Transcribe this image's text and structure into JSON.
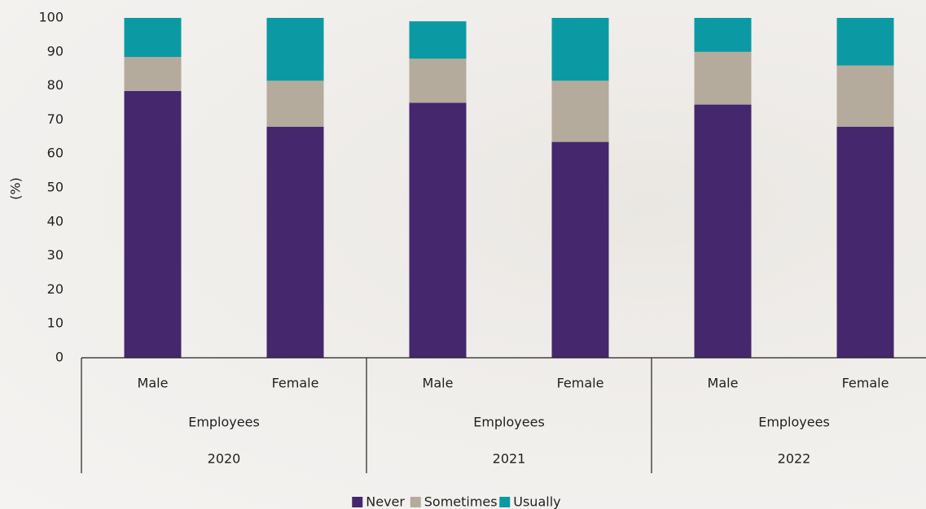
{
  "chart_data": {
    "type": "stacked_bar",
    "y_label": "(%)",
    "categories": [
      "Male",
      "Female",
      "Male",
      "Female",
      "Male",
      "Female"
    ],
    "groups": [
      {
        "name": "Employees",
        "year": "2020"
      },
      {
        "name": "Employees",
        "year": "2021"
      },
      {
        "name": "Employees",
        "year": "2022"
      }
    ],
    "series": [
      {
        "name": "Never",
        "color": "#45276d",
        "values": [
          78.5,
          68,
          75,
          63.5,
          74.5,
          68
        ]
      },
      {
        "name": "Sometimes",
        "color": "#b5ab9c",
        "values": [
          10,
          13.5,
          13,
          18,
          15.5,
          18
        ]
      },
      {
        "name": "Usually",
        "color": "#0b9aa3",
        "values": [
          11.5,
          18.5,
          11,
          18.5,
          10,
          14
        ]
      }
    ],
    "ylim": [
      0,
      100
    ],
    "yticks": [
      0,
      10,
      20,
      30,
      40,
      50,
      60,
      70,
      80,
      90,
      100
    ],
    "grid": false,
    "legend": "bottom"
  }
}
